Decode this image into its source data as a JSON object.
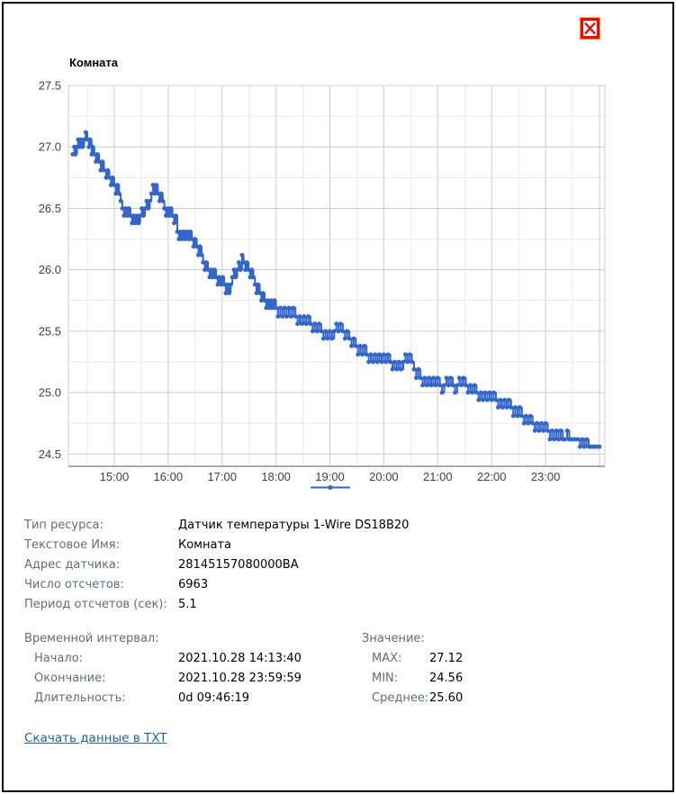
{
  "window": {
    "close_label": "close",
    "close_color": "#ff0000"
  },
  "chart_data": {
    "type": "line",
    "title": "Комната",
    "series_name": "Комната",
    "color": "#3366cc",
    "grid_color": "#cccccc",
    "minor_grid_color": "#e9e9e9",
    "baseline_color": "#7a7a7a",
    "label_color": "#404040",
    "x_unit": "time",
    "y_unit": "°C",
    "x_range": [
      14.15,
      24.1
    ],
    "y_range": [
      24.4,
      27.5
    ],
    "x_ticks": [
      {
        "t": 15,
        "label": "15:00"
      },
      {
        "t": 16,
        "label": "16:00"
      },
      {
        "t": 17,
        "label": "17:00"
      },
      {
        "t": 18,
        "label": "18:00"
      },
      {
        "t": 19,
        "label": "19:00"
      },
      {
        "t": 20,
        "label": "20:00"
      },
      {
        "t": 21,
        "label": "21:00"
      },
      {
        "t": 22,
        "label": "22:00"
      },
      {
        "t": 23,
        "label": "23:00"
      }
    ],
    "x_minor_step": 0.5,
    "y_ticks": [
      {
        "v": 27.5,
        "label": "27.5"
      },
      {
        "v": 27.0,
        "label": "27.0"
      },
      {
        "v": 26.5,
        "label": "26.5"
      },
      {
        "v": 26.0,
        "label": "26.0"
      },
      {
        "v": 25.5,
        "label": "25.5"
      },
      {
        "v": 25.0,
        "label": "25.0"
      },
      {
        "v": 24.5,
        "label": "24.5"
      }
    ],
    "y_minor_step": 0.25,
    "legend": "line-with-dot-marker, centered below x axis",
    "points": [
      [
        14.23,
        26.94
      ],
      [
        14.26,
        27.0
      ],
      [
        14.28,
        26.94
      ],
      [
        14.31,
        27.0
      ],
      [
        14.33,
        27.06
      ],
      [
        14.36,
        27.0
      ],
      [
        14.38,
        27.06
      ],
      [
        14.41,
        27.0
      ],
      [
        14.44,
        27.06
      ],
      [
        14.47,
        27.12
      ],
      [
        14.5,
        27.06
      ],
      [
        14.53,
        27.0
      ],
      [
        14.55,
        27.06
      ],
      [
        14.58,
        26.94
      ],
      [
        14.6,
        27.0
      ],
      [
        14.63,
        26.94
      ],
      [
        14.66,
        26.88
      ],
      [
        14.69,
        26.94
      ],
      [
        14.72,
        26.88
      ],
      [
        14.75,
        26.81
      ],
      [
        14.78,
        26.88
      ],
      [
        14.81,
        26.81
      ],
      [
        14.85,
        26.75
      ],
      [
        14.88,
        26.81
      ],
      [
        14.91,
        26.75
      ],
      [
        14.94,
        26.69
      ],
      [
        14.97,
        26.75
      ],
      [
        15.0,
        26.69
      ],
      [
        15.03,
        26.62
      ],
      [
        15.06,
        26.69
      ],
      [
        15.09,
        26.62
      ],
      [
        15.12,
        26.56
      ],
      [
        15.15,
        26.5
      ],
      [
        15.18,
        26.44
      ],
      [
        15.21,
        26.5
      ],
      [
        15.24,
        26.44
      ],
      [
        15.27,
        26.5
      ],
      [
        15.3,
        26.44
      ],
      [
        15.33,
        26.38
      ],
      [
        15.36,
        26.44
      ],
      [
        15.39,
        26.38
      ],
      [
        15.42,
        26.44
      ],
      [
        15.45,
        26.38
      ],
      [
        15.48,
        26.44
      ],
      [
        15.51,
        26.5
      ],
      [
        15.54,
        26.44
      ],
      [
        15.57,
        26.5
      ],
      [
        15.6,
        26.56
      ],
      [
        15.63,
        26.5
      ],
      [
        15.66,
        26.56
      ],
      [
        15.69,
        26.62
      ],
      [
        15.72,
        26.69
      ],
      [
        15.75,
        26.62
      ],
      [
        15.78,
        26.69
      ],
      [
        15.81,
        26.62
      ],
      [
        15.84,
        26.56
      ],
      [
        15.87,
        26.62
      ],
      [
        15.9,
        26.56
      ],
      [
        15.93,
        26.5
      ],
      [
        15.96,
        26.44
      ],
      [
        15.99,
        26.5
      ],
      [
        16.02,
        26.44
      ],
      [
        16.05,
        26.5
      ],
      [
        16.08,
        26.44
      ],
      [
        16.11,
        26.38
      ],
      [
        16.14,
        26.44
      ],
      [
        16.17,
        26.31
      ],
      [
        16.2,
        26.25
      ],
      [
        16.23,
        26.31
      ],
      [
        16.26,
        26.25
      ],
      [
        16.29,
        26.31
      ],
      [
        16.32,
        26.25
      ],
      [
        16.35,
        26.31
      ],
      [
        16.38,
        26.25
      ],
      [
        16.41,
        26.31
      ],
      [
        16.44,
        26.25
      ],
      [
        16.47,
        26.19
      ],
      [
        16.5,
        26.25
      ],
      [
        16.53,
        26.19
      ],
      [
        16.56,
        26.12
      ],
      [
        16.59,
        26.19
      ],
      [
        16.62,
        26.12
      ],
      [
        16.65,
        26.06
      ],
      [
        16.68,
        26.0
      ],
      [
        16.71,
        26.06
      ],
      [
        16.74,
        26.0
      ],
      [
        16.77,
        25.94
      ],
      [
        16.8,
        26.0
      ],
      [
        16.83,
        25.94
      ],
      [
        16.86,
        26.0
      ],
      [
        16.89,
        25.94
      ],
      [
        16.92,
        25.88
      ],
      [
        16.95,
        25.94
      ],
      [
        16.98,
        25.88
      ],
      [
        17.01,
        25.94
      ],
      [
        17.04,
        25.88
      ],
      [
        17.07,
        25.81
      ],
      [
        17.1,
        25.88
      ],
      [
        17.13,
        25.81
      ],
      [
        17.16,
        25.88
      ],
      [
        17.19,
        25.94
      ],
      [
        17.22,
        26.0
      ],
      [
        17.25,
        25.94
      ],
      [
        17.28,
        26.0
      ],
      [
        17.31,
        26.06
      ],
      [
        17.34,
        26.0
      ],
      [
        17.37,
        26.12
      ],
      [
        17.4,
        26.06
      ],
      [
        17.43,
        26.0
      ],
      [
        17.46,
        26.06
      ],
      [
        17.49,
        26.0
      ],
      [
        17.52,
        25.94
      ],
      [
        17.55,
        26.0
      ],
      [
        17.58,
        25.94
      ],
      [
        17.61,
        25.88
      ],
      [
        17.64,
        25.81
      ],
      [
        17.67,
        25.88
      ],
      [
        17.7,
        25.81
      ],
      [
        17.73,
        25.75
      ],
      [
        17.76,
        25.81
      ],
      [
        17.79,
        25.75
      ],
      [
        17.82,
        25.69
      ],
      [
        17.85,
        25.75
      ],
      [
        17.88,
        25.69
      ],
      [
        17.91,
        25.75
      ],
      [
        17.94,
        25.69
      ],
      [
        17.97,
        25.75
      ],
      [
        18.0,
        25.69
      ],
      [
        18.04,
        25.62
      ],
      [
        18.08,
        25.69
      ],
      [
        18.12,
        25.62
      ],
      [
        18.16,
        25.69
      ],
      [
        18.2,
        25.62
      ],
      [
        18.24,
        25.69
      ],
      [
        18.28,
        25.62
      ],
      [
        18.32,
        25.69
      ],
      [
        18.36,
        25.62
      ],
      [
        18.4,
        25.56
      ],
      [
        18.44,
        25.62
      ],
      [
        18.48,
        25.56
      ],
      [
        18.52,
        25.62
      ],
      [
        18.56,
        25.56
      ],
      [
        18.6,
        25.62
      ],
      [
        18.64,
        25.56
      ],
      [
        18.68,
        25.5
      ],
      [
        18.72,
        25.56
      ],
      [
        18.76,
        25.5
      ],
      [
        18.8,
        25.56
      ],
      [
        18.84,
        25.5
      ],
      [
        18.88,
        25.44
      ],
      [
        18.92,
        25.5
      ],
      [
        18.96,
        25.44
      ],
      [
        19.0,
        25.5
      ],
      [
        19.04,
        25.44
      ],
      [
        19.08,
        25.5
      ],
      [
        19.12,
        25.56
      ],
      [
        19.16,
        25.5
      ],
      [
        19.2,
        25.56
      ],
      [
        19.24,
        25.5
      ],
      [
        19.28,
        25.44
      ],
      [
        19.32,
        25.5
      ],
      [
        19.36,
        25.44
      ],
      [
        19.4,
        25.38
      ],
      [
        19.44,
        25.44
      ],
      [
        19.48,
        25.38
      ],
      [
        19.52,
        25.31
      ],
      [
        19.56,
        25.38
      ],
      [
        19.6,
        25.31
      ],
      [
        19.64,
        25.38
      ],
      [
        19.68,
        25.31
      ],
      [
        19.72,
        25.25
      ],
      [
        19.76,
        25.31
      ],
      [
        19.8,
        25.25
      ],
      [
        19.84,
        25.31
      ],
      [
        19.88,
        25.25
      ],
      [
        19.92,
        25.31
      ],
      [
        19.96,
        25.25
      ],
      [
        20.0,
        25.31
      ],
      [
        20.04,
        25.25
      ],
      [
        20.08,
        25.31
      ],
      [
        20.12,
        25.25
      ],
      [
        20.16,
        25.19
      ],
      [
        20.2,
        25.25
      ],
      [
        20.24,
        25.19
      ],
      [
        20.28,
        25.25
      ],
      [
        20.32,
        25.19
      ],
      [
        20.36,
        25.25
      ],
      [
        20.4,
        25.31
      ],
      [
        20.44,
        25.25
      ],
      [
        20.48,
        25.31
      ],
      [
        20.52,
        25.25
      ],
      [
        20.56,
        25.19
      ],
      [
        20.6,
        25.12
      ],
      [
        20.64,
        25.19
      ],
      [
        20.68,
        25.12
      ],
      [
        20.72,
        25.06
      ],
      [
        20.76,
        25.12
      ],
      [
        20.8,
        25.06
      ],
      [
        20.84,
        25.12
      ],
      [
        20.88,
        25.06
      ],
      [
        20.92,
        25.12
      ],
      [
        20.96,
        25.06
      ],
      [
        21.0,
        25.12
      ],
      [
        21.04,
        25.06
      ],
      [
        21.08,
        25.0
      ],
      [
        21.12,
        25.06
      ],
      [
        21.16,
        25.12
      ],
      [
        21.2,
        25.06
      ],
      [
        21.24,
        25.12
      ],
      [
        21.28,
        25.06
      ],
      [
        21.32,
        25.0
      ],
      [
        21.36,
        25.06
      ],
      [
        21.4,
        25.12
      ],
      [
        21.44,
        25.06
      ],
      [
        21.48,
        25.12
      ],
      [
        21.52,
        25.06
      ],
      [
        21.56,
        25.0
      ],
      [
        21.6,
        25.06
      ],
      [
        21.64,
        25.0
      ],
      [
        21.68,
        25.06
      ],
      [
        21.72,
        25.0
      ],
      [
        21.76,
        24.94
      ],
      [
        21.8,
        25.0
      ],
      [
        21.84,
        24.94
      ],
      [
        21.88,
        25.0
      ],
      [
        21.92,
        24.94
      ],
      [
        21.96,
        25.0
      ],
      [
        22.0,
        24.94
      ],
      [
        22.04,
        25.0
      ],
      [
        22.08,
        24.94
      ],
      [
        22.12,
        24.88
      ],
      [
        22.16,
        24.94
      ],
      [
        22.2,
        24.88
      ],
      [
        22.24,
        24.94
      ],
      [
        22.28,
        24.88
      ],
      [
        22.32,
        24.94
      ],
      [
        22.36,
        24.88
      ],
      [
        22.4,
        24.81
      ],
      [
        22.44,
        24.88
      ],
      [
        22.48,
        24.81
      ],
      [
        22.52,
        24.88
      ],
      [
        22.56,
        24.81
      ],
      [
        22.6,
        24.75
      ],
      [
        22.64,
        24.81
      ],
      [
        22.68,
        24.75
      ],
      [
        22.72,
        24.81
      ],
      [
        22.76,
        24.75
      ],
      [
        22.8,
        24.69
      ],
      [
        22.84,
        24.75
      ],
      [
        22.88,
        24.69
      ],
      [
        22.92,
        24.75
      ],
      [
        22.96,
        24.69
      ],
      [
        23.0,
        24.75
      ],
      [
        23.04,
        24.69
      ],
      [
        23.08,
        24.62
      ],
      [
        23.12,
        24.69
      ],
      [
        23.16,
        24.62
      ],
      [
        23.2,
        24.69
      ],
      [
        23.24,
        24.62
      ],
      [
        23.28,
        24.69
      ],
      [
        23.32,
        24.62
      ],
      [
        23.36,
        24.62
      ],
      [
        23.4,
        24.69
      ],
      [
        23.44,
        24.62
      ],
      [
        23.48,
        24.62
      ],
      [
        23.52,
        24.62
      ],
      [
        23.56,
        24.62
      ],
      [
        23.6,
        24.62
      ],
      [
        23.64,
        24.56
      ],
      [
        23.68,
        24.62
      ],
      [
        23.72,
        24.56
      ],
      [
        23.76,
        24.62
      ],
      [
        23.8,
        24.56
      ],
      [
        23.84,
        24.56
      ],
      [
        23.88,
        24.56
      ],
      [
        23.92,
        24.56
      ],
      [
        23.96,
        24.56
      ],
      [
        24.0,
        24.56
      ]
    ]
  },
  "info": {
    "rows": [
      {
        "label": "Тип ресурса:",
        "value": "Датчик температуры 1-Wire DS18B20"
      },
      {
        "label": "Текстовое Имя:",
        "value": "Комната"
      },
      {
        "label": "Адрес датчика:",
        "value": "28145157080000BA"
      },
      {
        "label": "Число отсчетов:",
        "value": "6963"
      },
      {
        "label": "Период отсчетов (сек):",
        "value": "5.1"
      }
    ],
    "interval": {
      "header": "Временной интервал:",
      "rows": [
        {
          "label": "Начало:",
          "value": "2021.10.28 14:13:40"
        },
        {
          "label": "Окончание:",
          "value": "2021.10.28 23:59:59"
        },
        {
          "label": "Длительность:",
          "value": "0d 09:46:19"
        }
      ]
    },
    "values": {
      "header": "Значение:",
      "rows": [
        {
          "label": "MAX:",
          "value": "27.12"
        },
        {
          "label": "MIN:",
          "value": "24.56"
        },
        {
          "label": "Среднее:",
          "value": "25.60"
        }
      ]
    }
  },
  "footer": {
    "download_link": "Скачать данные в TXT"
  }
}
